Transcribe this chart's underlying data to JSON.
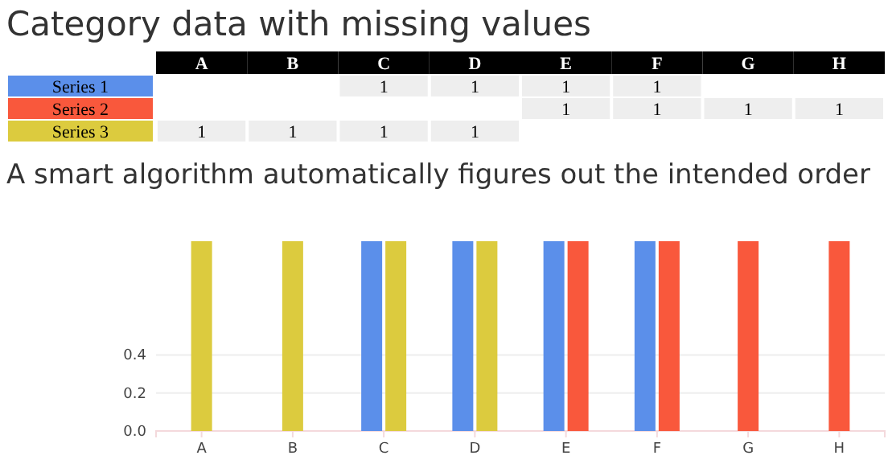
{
  "chart_data": {
    "type": "bar",
    "title": "Category data with missing values",
    "subtitle": "A smart algorithm automatically figures out the intended order",
    "categories": [
      "A",
      "B",
      "C",
      "D",
      "E",
      "F",
      "G",
      "H"
    ],
    "series": [
      {
        "name": "Series 1",
        "color": "#5b8fea",
        "values": [
          null,
          null,
          1,
          1,
          1,
          1,
          null,
          null
        ]
      },
      {
        "name": "Series 2",
        "color": "#f9583c",
        "values": [
          null,
          null,
          null,
          null,
          1,
          1,
          1,
          1
        ]
      },
      {
        "name": "Series 3",
        "color": "#dccb3e",
        "values": [
          1,
          1,
          1,
          1,
          null,
          null,
          null,
          null
        ]
      }
    ],
    "ylim": [
      0,
      1
    ],
    "yticks": [
      {
        "value": 0,
        "label": "0.0"
      },
      {
        "value": 0.2,
        "label": "0.2"
      },
      {
        "value": 0.4,
        "label": "0.4"
      }
    ],
    "grid": "y",
    "legend": "top left",
    "data_labels": true
  }
}
